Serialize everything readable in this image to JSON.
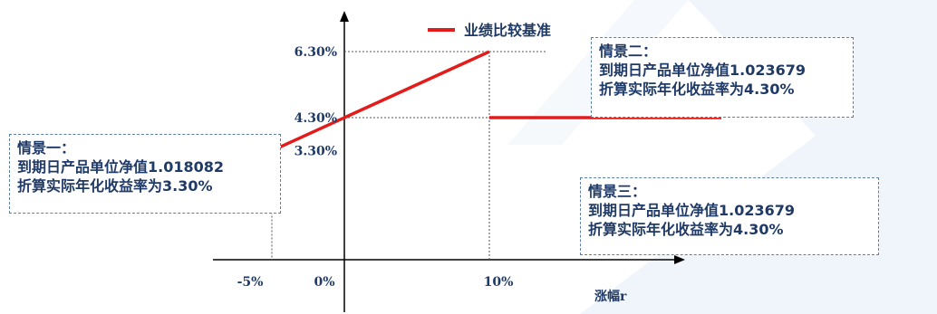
{
  "chart_data": {
    "type": "line",
    "legend": {
      "label": "业绩比较基准",
      "placement": "top-center"
    },
    "xlabel": "涨幅r",
    "x_ticks": [
      "-5%",
      "0%",
      "10%"
    ],
    "y_ticks": [
      "6.30%",
      "4.30%",
      "3.30%"
    ],
    "series": [
      {
        "name": "业绩比较基准",
        "color": "#e31b1b",
        "segments": [
          {
            "x": [
              -10,
              -5
            ],
            "y": [
              3.3,
              3.3
            ]
          },
          {
            "x": [
              -5,
              10
            ],
            "y": [
              3.3,
              6.3
            ]
          },
          {
            "x": [
              10,
              26
            ],
            "y": [
              4.3,
              4.3
            ]
          }
        ]
      }
    ],
    "guides": [
      {
        "x": [
          -5,
          -5
        ],
        "y": [
          3.3,
          0.0
        ]
      },
      {
        "x": [
          0,
          14
        ],
        "y": [
          6.3,
          6.3
        ]
      },
      {
        "x": [
          10,
          10
        ],
        "y": [
          6.3,
          0.0
        ]
      },
      {
        "x": [
          0,
          10
        ],
        "y": [
          4.3,
          4.3
        ]
      }
    ],
    "grid": false
  },
  "scenarios": [
    {
      "title": "情景一：",
      "nav": "到期日产品单位净值1.018082",
      "yield": "折算实际年化收益率为3.30%"
    },
    {
      "title": "情景二：",
      "nav": "到期日产品单位净值1.023679",
      "yield": "折算实际年化收益率为4.30%"
    },
    {
      "title": "情景三：",
      "nav": "到期日产品单位净值1.023679",
      "yield": "折算实际年化收益率为4.30%"
    }
  ],
  "colors": {
    "line": "#e31b1b",
    "axis": "#000000",
    "text": "#1f3a66",
    "box_border": "#5b7fa6",
    "watermark": "#d9e6f2"
  }
}
